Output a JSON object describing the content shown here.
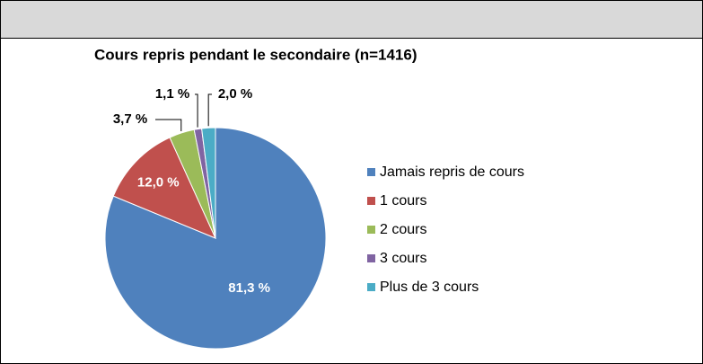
{
  "chart_data": {
    "type": "pie",
    "title": "Cours repris pendant le secondaire  (n=1416)",
    "categories": [
      "Jamais repris de cours",
      "1 cours",
      "2 cours",
      "3 cours",
      "Plus de 3 cours"
    ],
    "values": [
      81.3,
      12.0,
      3.7,
      1.1,
      2.0
    ],
    "value_labels": [
      "81,3 %",
      "12,0 %",
      "3,7 %",
      "1,1 %",
      "2,0 %"
    ],
    "colors": [
      "#4f81bd",
      "#c0504d",
      "#9bbb59",
      "#8064a2",
      "#4bacc6"
    ],
    "legend": "right"
  }
}
